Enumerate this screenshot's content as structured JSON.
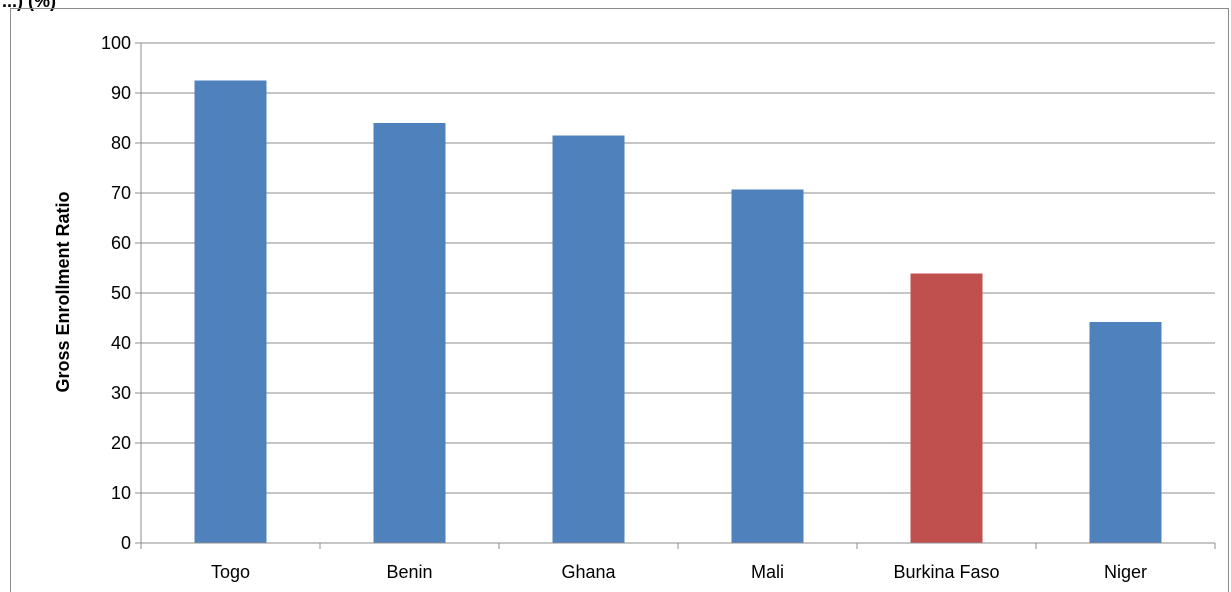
{
  "header_cut": "...)   (%)",
  "chart_data": {
    "type": "bar",
    "ylabel": "Gross Enrollment Ratio",
    "xlabel": "",
    "ylim": [
      0,
      100
    ],
    "yticks": [
      0,
      10,
      20,
      30,
      40,
      50,
      60,
      70,
      80,
      90,
      100
    ],
    "grid": true,
    "categories": [
      "Togo",
      "Benin",
      "Ghana",
      "Mali",
      "Burkina Faso",
      "Niger"
    ],
    "values": [
      92.5,
      84,
      81.5,
      70.7,
      53.9,
      44.2
    ],
    "colors": [
      "#4f81bd",
      "#4f81bd",
      "#4f81bd",
      "#4f81bd",
      "#c0504d",
      "#4f81bd"
    ]
  }
}
